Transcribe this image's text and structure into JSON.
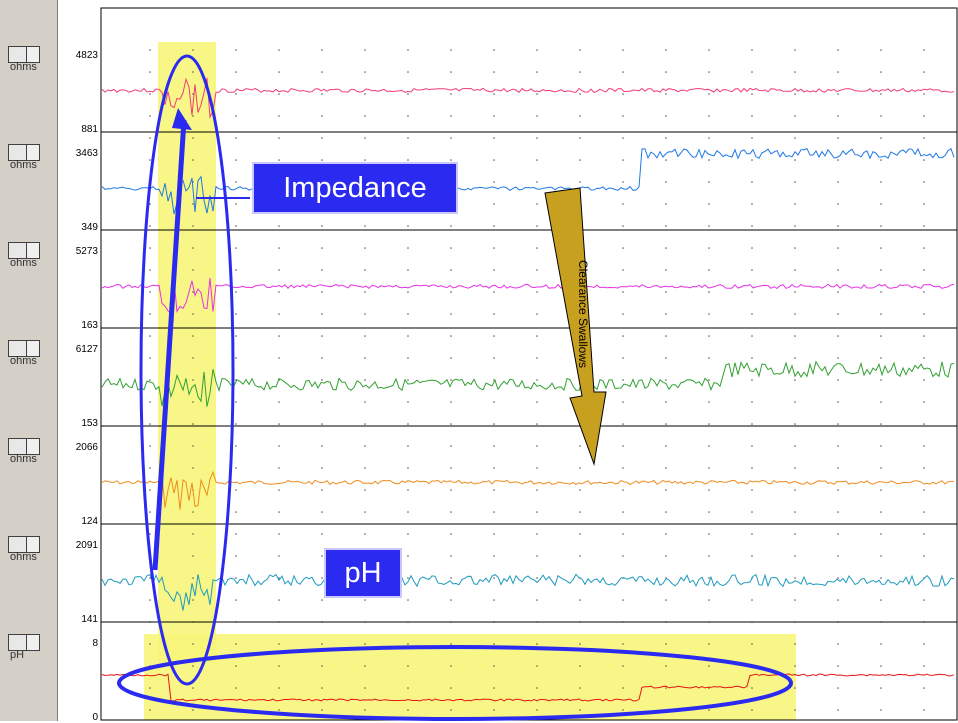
{
  "channels": [
    {
      "unit": "ohms",
      "max": "4823",
      "min": "881",
      "color": "#f03c78"
    },
    {
      "unit": "ohms",
      "max": "3463",
      "min": "349",
      "color": "#1e78e6"
    },
    {
      "unit": "ohms",
      "max": "5273",
      "min": "163",
      "color": "#e632e6"
    },
    {
      "unit": "ohms",
      "max": "6127",
      "min": "153",
      "color": "#32a032"
    },
    {
      "unit": "ohms",
      "max": "2066",
      "min": "124",
      "color": "#f08c1e"
    },
    {
      "unit": "ohms",
      "max": "2091",
      "min": "141",
      "color": "#1e9bbe"
    },
    {
      "unit": "pH",
      "max": "8",
      "min": "0",
      "color": "#e61414"
    }
  ],
  "annotations": {
    "impedance_label": "Impedance",
    "ph_label": "pH",
    "arrow_label": "Clearance Swallows"
  },
  "colors": {
    "highlight": "#f7f57a",
    "overlay": "#2a2af0",
    "arrow": "#c8a020"
  }
}
